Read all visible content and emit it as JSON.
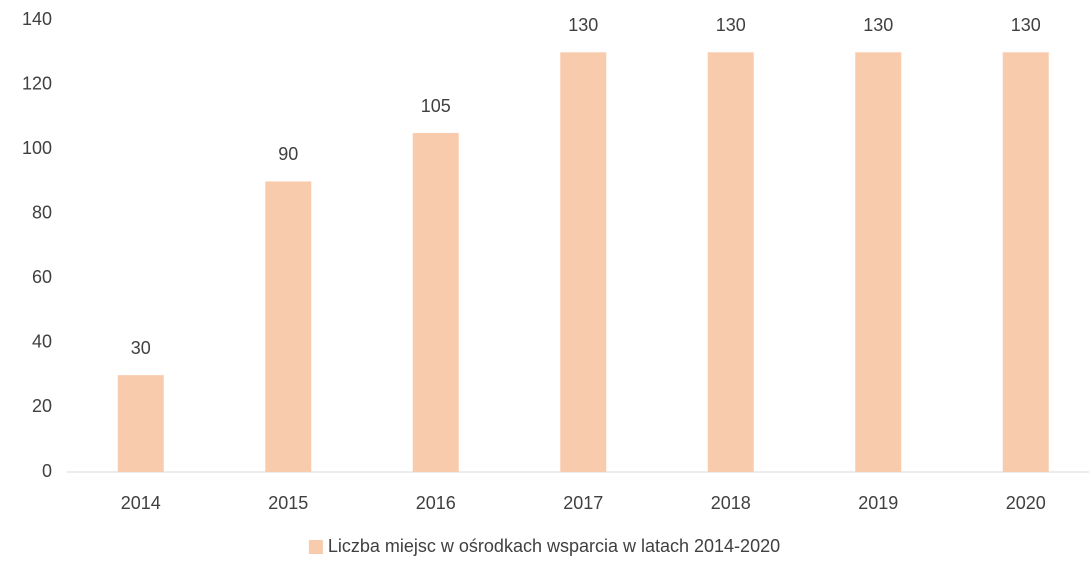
{
  "chart_data": {
    "type": "bar",
    "categories": [
      "2014",
      "2015",
      "2016",
      "2017",
      "2018",
      "2019",
      "2020"
    ],
    "series": [
      {
        "name": "Liczba miejsc w ośrodkach wsparcia w latach 2014-2020",
        "color": "#f8cbad",
        "values": [
          30,
          90,
          105,
          130,
          130,
          130,
          130
        ]
      }
    ],
    "ylim": [
      0,
      140
    ],
    "yticks": [
      0,
      20,
      40,
      60,
      80,
      100,
      120,
      140
    ],
    "grid": false,
    "data_labels": true,
    "legend": "bottom"
  }
}
